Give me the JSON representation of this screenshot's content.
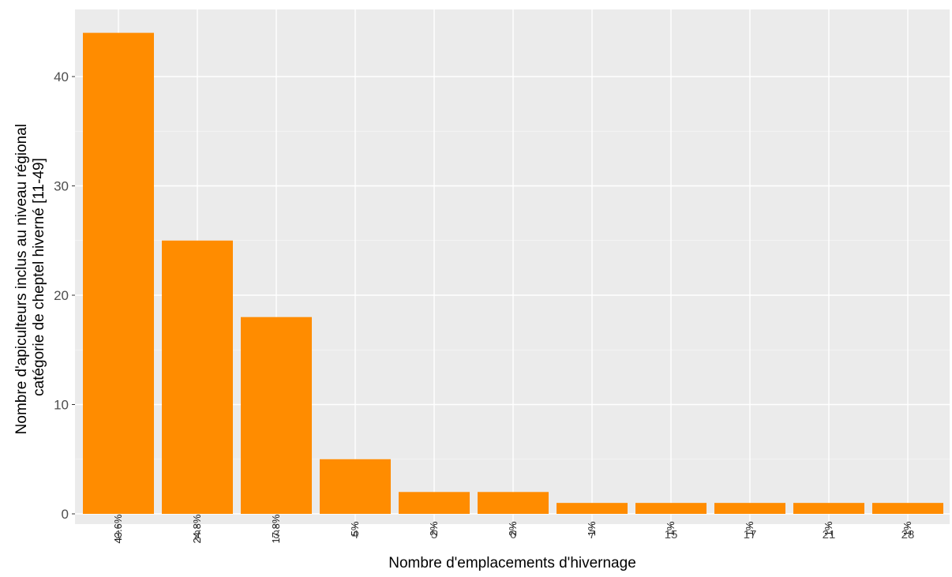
{
  "chart_data": {
    "type": "bar",
    "title": "",
    "xlabel": "Nombre d'emplacements d'hivernage",
    "ylabel_lines": [
      "Nombre d'apiculteurs inclus au niveau régional",
      "catégorie de cheptel hiverné [11-49]"
    ],
    "categories": [
      "1",
      "2",
      "3",
      "4",
      "5",
      "6",
      "7",
      "15",
      "17",
      "21",
      "28"
    ],
    "values": [
      44,
      25,
      18,
      5,
      2,
      2,
      1,
      1,
      1,
      1,
      1
    ],
    "percent_labels": [
      "43.6%",
      "24.8%",
      "17.8%",
      "5%",
      "2%",
      "2%",
      "1%",
      "1%",
      "1%",
      "1%",
      "1%"
    ],
    "ylim": [
      0,
      46
    ],
    "y_ticks": [
      0,
      10,
      20,
      30,
      40
    ],
    "grid": true,
    "legend": "none",
    "colors": {
      "bar": "#FF8C00",
      "panel_background": "#EBEBEB",
      "grid_major": "#FFFFFF",
      "grid_minor": "#F5F5F5"
    }
  }
}
